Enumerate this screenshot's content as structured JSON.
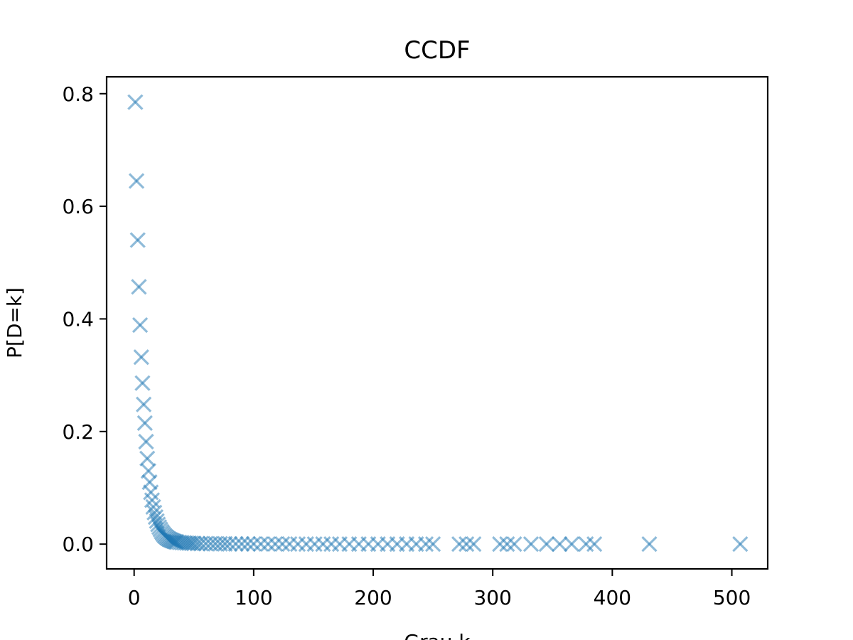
{
  "chart_data": {
    "type": "scatter",
    "title": "CCDF",
    "xlabel": "Grau k",
    "ylabel": "P[D=k]",
    "xlim": [
      -23,
      530
    ],
    "ylim": [
      -0.044,
      0.83
    ],
    "xticks": [
      0,
      100,
      200,
      300,
      400,
      500
    ],
    "yticks": [
      0.0,
      0.2,
      0.4,
      0.6,
      0.8
    ],
    "ytick_labels": [
      "0.0",
      "0.2",
      "0.4",
      "0.6",
      "0.8"
    ],
    "grid": false,
    "legend": "none",
    "marker": "x",
    "color": "#1f77b4",
    "opacity": 0.5,
    "series": [
      {
        "x": [
          1,
          2,
          3,
          4,
          5,
          6,
          7,
          8,
          9,
          10,
          11,
          12,
          13,
          14,
          15,
          16,
          17,
          18,
          19,
          20,
          21,
          22,
          23,
          24,
          25,
          26,
          27,
          28,
          29,
          30,
          31,
          32,
          33,
          34,
          35,
          36,
          38,
          40,
          42,
          44,
          46,
          48,
          50,
          53,
          56,
          60,
          64,
          68,
          72,
          76,
          80,
          85,
          90,
          95,
          100,
          106,
          112,
          118,
          124,
          130,
          137,
          144,
          151,
          158,
          165,
          172,
          180,
          188,
          196,
          204,
          212,
          220,
          228,
          236,
          244,
          250,
          272,
          278,
          284,
          306,
          312,
          318,
          332,
          345,
          356,
          366,
          378,
          385,
          431,
          507
        ],
        "y": [
          0.785,
          0.645,
          0.54,
          0.457,
          0.389,
          0.332,
          0.286,
          0.248,
          0.215,
          0.182,
          0.152,
          0.13,
          0.11,
          0.092,
          0.078,
          0.066,
          0.056,
          0.048,
          0.041,
          0.035,
          0.03,
          0.026,
          0.022,
          0.019,
          0.016,
          0.014,
          0.012,
          0.0105,
          0.009,
          0.008,
          0.007,
          0.006,
          0.0052,
          0.0045,
          0.004,
          0.0035,
          0.003,
          0.0026,
          0.0022,
          0.0019,
          0.0016,
          0.0014,
          0.0012,
          0.001,
          0.0009,
          0.0008,
          0.0007,
          0.0006,
          0.0005,
          0.0005,
          0.0004,
          0.0004,
          0.0003,
          0.0003,
          0.0003,
          0.0002,
          0.0002,
          0.0002,
          0.0002,
          0.0002,
          0.0001,
          0.0001,
          0.0001,
          0.0001,
          0.0001,
          0.0001,
          0.0001,
          0.0001,
          0.0001,
          0.0001,
          0.0001,
          0.0001,
          0.0001,
          0.0001,
          0.0001,
          0.0001,
          0.0001,
          0.0001,
          0.0001,
          0.0001,
          0.0001,
          0.0001,
          0.0001,
          0.0001,
          0.0001,
          0.0001,
          0.0001,
          0.0001,
          0.0001,
          0.0001
        ]
      }
    ]
  }
}
